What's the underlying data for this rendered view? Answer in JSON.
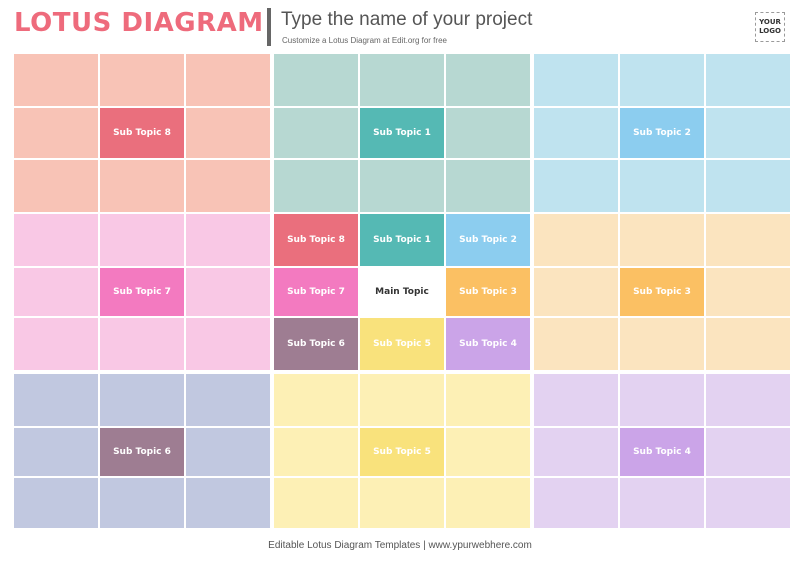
{
  "header": {
    "title": "LOTUS DIAGRAM",
    "project_name": "Type the name of your project",
    "project_subtitle": "Customize a Lotus Diagram at Edit.org for free",
    "logo_line1": "YOUR",
    "logo_line2": "LOGO"
  },
  "footer": {
    "text": "Editable Lotus Diagram Templates | www.ypurwebhere.com"
  },
  "center": "Main Topic",
  "topics": [
    {
      "label": "Sub Topic 1",
      "block": "top-center",
      "strong": "#55b9b4",
      "light": "#b7d8d2"
    },
    {
      "label": "Sub Topic 2",
      "block": "top-right",
      "strong": "#8ccdef",
      "light": "#bfe3ef"
    },
    {
      "label": "Sub Topic 3",
      "block": "middle-right",
      "strong": "#fbc063",
      "light": "#fbe4bf"
    },
    {
      "label": "Sub Topic 4",
      "block": "bottom-right",
      "strong": "#cba4e8",
      "light": "#e3d2f1"
    },
    {
      "label": "Sub Topic 5",
      "block": "bottom-center",
      "strong": "#f9e27c",
      "light": "#fdf0b5"
    },
    {
      "label": "Sub Topic 6",
      "block": "bottom-left",
      "strong": "#9e7d92",
      "light": "#c1c8e0"
    },
    {
      "label": "Sub Topic 7",
      "block": "middle-left",
      "strong": "#f37ac0",
      "light": "#f9c8e5"
    },
    {
      "label": "Sub Topic 8",
      "block": "top-left",
      "strong": "#ea6f7d",
      "light": "#f8c3b6"
    }
  ],
  "colors": {
    "center_light": "#ffffff",
    "title": "#ee6b7c"
  }
}
